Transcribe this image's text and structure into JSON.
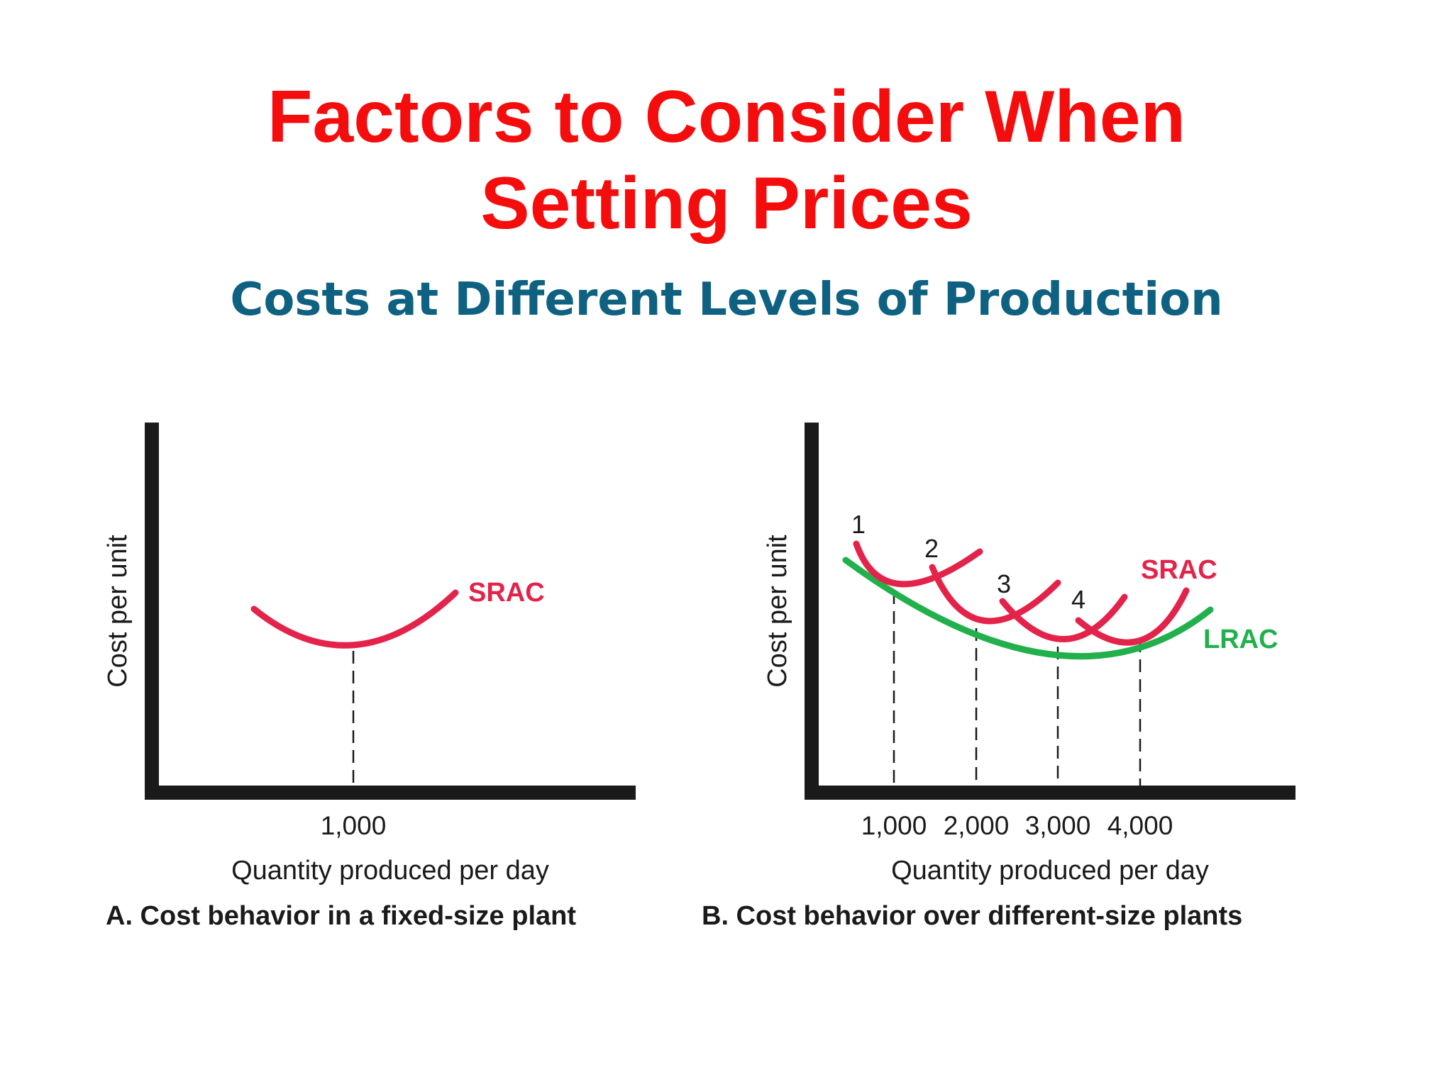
{
  "slide": {
    "title_line1": "Factors to Consider When",
    "title_line2": "Setting Prices",
    "subtitle": "Costs at Different Levels of Production",
    "colors": {
      "title": "#f50d0d",
      "subtitle": "#0e6180",
      "srac": "#e3234a",
      "lrac": "#21b04b",
      "axis": "#1a1a1a"
    }
  },
  "chart_data": [
    {
      "type": "line",
      "caption": "A. Cost behavior in a fixed-size plant",
      "xlabel": "Quantity produced per day",
      "ylabel": "Cost per unit",
      "x_ticks": [
        "1,000"
      ],
      "grid": false,
      "series": [
        {
          "name": "SRAC",
          "color": "#e3234a",
          "minimum_at": "1,000"
        }
      ]
    },
    {
      "type": "line",
      "caption": "B. Cost behavior over different-size plants",
      "xlabel": "Quantity produced per day",
      "ylabel": "Cost per unit",
      "x_ticks": [
        "1,000",
        "2,000",
        "3,000",
        "4,000"
      ],
      "grid": false,
      "curve_labels": [
        "1",
        "2",
        "3",
        "4"
      ],
      "series": [
        {
          "name": "SRAC",
          "color": "#e3234a",
          "curves": 4
        },
        {
          "name": "LRAC",
          "color": "#21b04b"
        }
      ]
    }
  ]
}
